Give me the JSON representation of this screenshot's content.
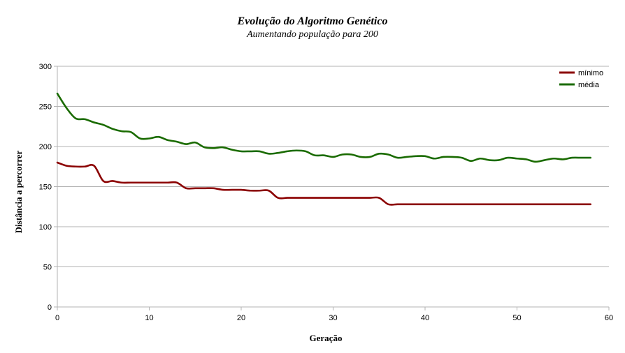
{
  "chart_data": {
    "type": "line",
    "title": "Evolução do Algoritmo Genético",
    "subtitle": "Aumentando população para 200",
    "xlabel": "Geração",
    "ylabel": "Distância a percorrer",
    "xlim": [
      0,
      60
    ],
    "ylim": [
      0,
      300
    ],
    "xticks": [
      0,
      10,
      20,
      30,
      40,
      50,
      60
    ],
    "yticks": [
      0,
      50,
      100,
      150,
      200,
      250,
      300
    ],
    "grid": true,
    "legend_position": "top-right",
    "x": [
      0,
      1,
      2,
      3,
      4,
      5,
      6,
      7,
      8,
      9,
      10,
      11,
      12,
      13,
      14,
      15,
      16,
      17,
      18,
      19,
      20,
      21,
      22,
      23,
      24,
      25,
      26,
      27,
      28,
      29,
      30,
      31,
      32,
      33,
      34,
      35,
      36,
      37,
      38,
      39,
      40,
      41,
      42,
      43,
      44,
      45,
      46,
      47,
      48,
      49,
      50,
      51,
      52,
      53,
      54,
      55,
      56,
      57,
      58
    ],
    "series": [
      {
        "name": "mínimo",
        "color": "#8b0000",
        "values": [
          180,
          176,
          175,
          175,
          176,
          157,
          157,
          155,
          155,
          155,
          155,
          155,
          155,
          155,
          148,
          148,
          148,
          148,
          146,
          146,
          146,
          145,
          145,
          145,
          136,
          136,
          136,
          136,
          136,
          136,
          136,
          136,
          136,
          136,
          136,
          136,
          128,
          128,
          128,
          128,
          128,
          128,
          128,
          128,
          128,
          128,
          128,
          128,
          128,
          128,
          128,
          128,
          128,
          128,
          128,
          128,
          128,
          128,
          128
        ]
      },
      {
        "name": "média",
        "color": "#1a6b00",
        "values": [
          266,
          248,
          235,
          234,
          230,
          227,
          222,
          219,
          218,
          210,
          210,
          212,
          208,
          206,
          203,
          205,
          199,
          198,
          199,
          196,
          194,
          194,
          194,
          191,
          192,
          194,
          195,
          194,
          189,
          189,
          187,
          190,
          190,
          187,
          187,
          191,
          190,
          186,
          187,
          188,
          188,
          185,
          187,
          187,
          186,
          182,
          185,
          183,
          183,
          186,
          185,
          184,
          181,
          183,
          185,
          184,
          186,
          186,
          186
        ]
      }
    ]
  }
}
